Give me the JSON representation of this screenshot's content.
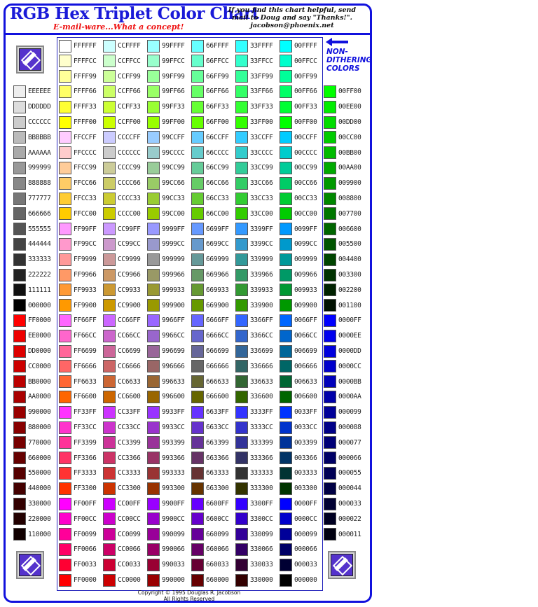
{
  "header": {
    "title": "RGB Hex Triplet Color Chart",
    "tagline": "E-mail-ware...What a concept!",
    "note_lines": [
      "If you find this chart helpful, send",
      "mail to Doug and say \"Thanks!\".",
      "jacobson@phoenix.net"
    ]
  },
  "non_dithering_label": [
    "NON-",
    "DITHERING",
    "COLORS"
  ],
  "footer": {
    "copyright": "Copyright © 1995 Douglas R. Jacobson",
    "rights": "All Rights Reserved"
  },
  "icons": {
    "logo": "logo-icon",
    "arrow": "left-arrow-icon"
  },
  "grays": [
    "EEEEEE",
    "DDDDDD",
    "CCCCCC",
    "BBBBBB",
    "AAAAAA",
    "999999",
    "888888",
    "777777",
    "666666",
    "555555",
    "444444",
    "333333",
    "222222",
    "111111",
    "000000"
  ],
  "reds": [
    "FF0000",
    "EE0000",
    "DD0000",
    "CC0000",
    "BB0000",
    "AA0000",
    "990000",
    "880000",
    "770000",
    "660000",
    "550000",
    "440000",
    "330000",
    "220000",
    "110000"
  ],
  "greens": [
    "00FF00",
    "00EE00",
    "00DD00",
    "00CC00",
    "00BB00",
    "00AA00",
    "009900",
    "008800",
    "007700",
    "006600",
    "005500",
    "004400",
    "003300",
    "002200",
    "001100"
  ],
  "blues": [
    "0000FF",
    "0000EE",
    "0000DD",
    "0000CC",
    "0000BB",
    "0000AA",
    "000099",
    "000088",
    "000077",
    "000066",
    "000055",
    "000044",
    "000033",
    "000022",
    "000011"
  ],
  "web_safe_grid": {
    "r_levels_per_column": [
      "FF",
      "CC",
      "99",
      "66",
      "33",
      "00"
    ],
    "g_levels": [
      "FF",
      "CC",
      "99",
      "66",
      "33",
      "00"
    ],
    "b_levels": [
      "FF",
      "CC",
      "99",
      "66",
      "33",
      "00"
    ]
  }
}
